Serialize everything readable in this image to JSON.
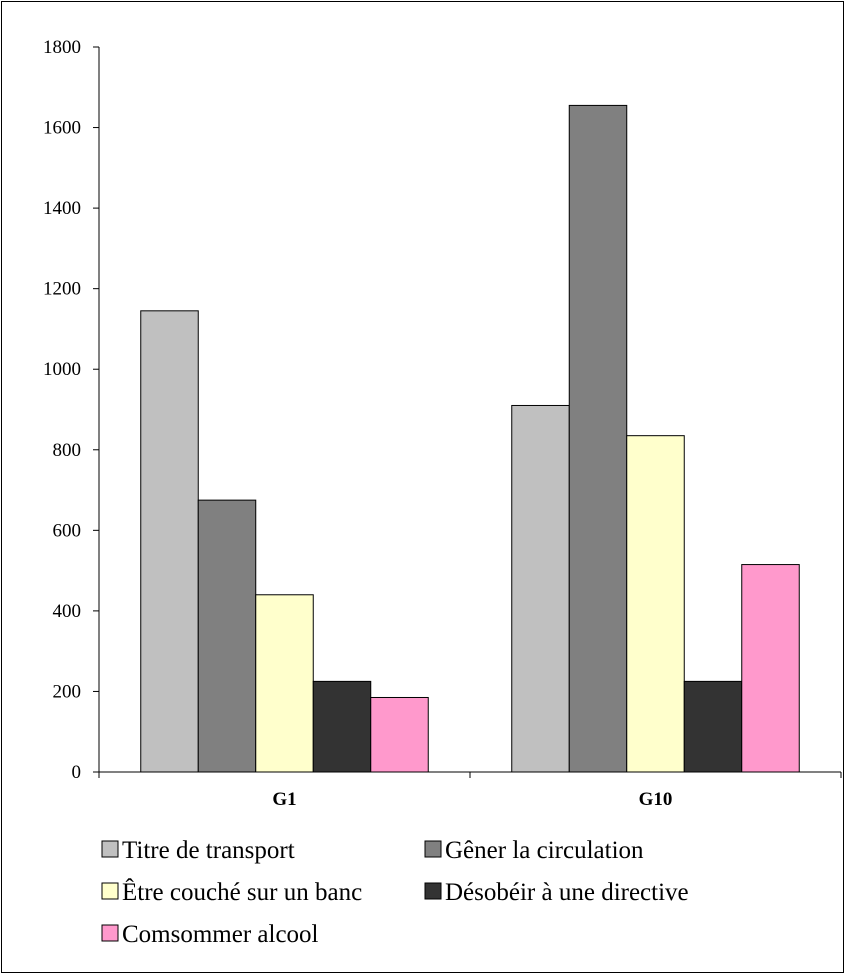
{
  "chart_data": {
    "type": "bar",
    "categories": [
      "G1",
      "G10"
    ],
    "series": [
      {
        "name": "Titre de transport",
        "color": "#c0c0c0",
        "values": [
          1145,
          910
        ]
      },
      {
        "name": "Gêner la circulation",
        "color": "#808080",
        "values": [
          675,
          1655
        ]
      },
      {
        "name": "Être couché sur un banc",
        "color": "#ffffcc",
        "values": [
          440,
          835
        ]
      },
      {
        "name": "Désobéir à une directive",
        "color": "#333333",
        "values": [
          225,
          225
        ]
      },
      {
        "name": "Comsommer alcool",
        "color": "#ff99cc",
        "values": [
          185,
          515
        ]
      }
    ],
    "ylim": [
      0,
      1800
    ],
    "yticks": [
      "0",
      "200",
      "400",
      "600",
      "800",
      "1000",
      "1200",
      "1400",
      "1600",
      "1800"
    ],
    "grid": false,
    "legend_position": "bottom"
  }
}
